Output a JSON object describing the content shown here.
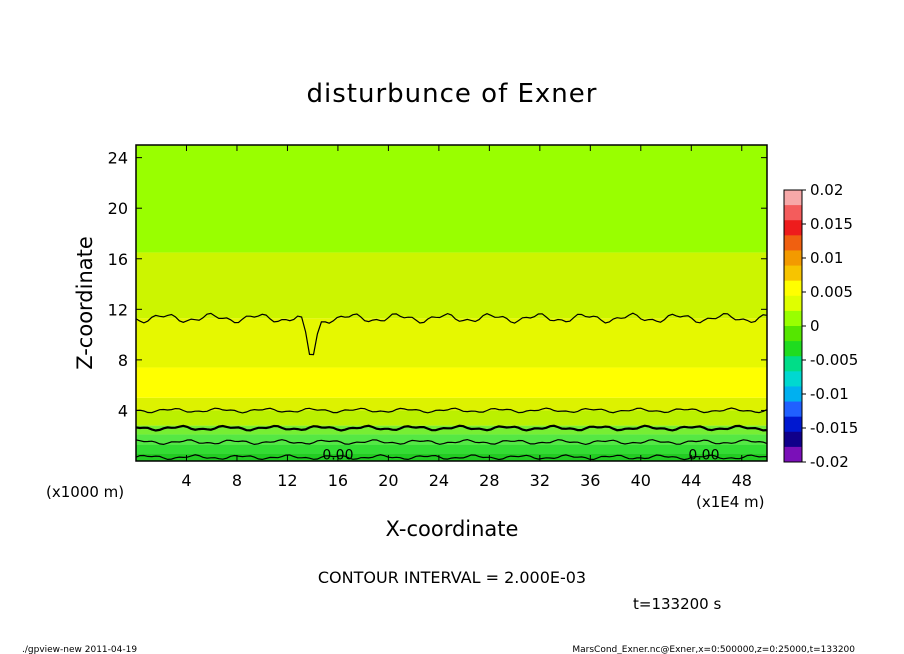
{
  "chart_data": {
    "type": "contour",
    "title": "disturbunce of Exner",
    "xlabel": "X-coordinate",
    "ylabel": "Z-coordinate",
    "x_unit_note": "(x1E4 m)",
    "y_unit_note": "(x1000 m)",
    "x_ticks": [
      "4",
      "8",
      "12",
      "16",
      "20",
      "24",
      "28",
      "32",
      "36",
      "40",
      "44",
      "48"
    ],
    "y_ticks": [
      "4",
      "8",
      "12",
      "16",
      "20",
      "24"
    ],
    "xlim": [
      0,
      50
    ],
    "ylim": [
      0,
      25
    ],
    "contour_interval_text": "CONTOUR INTERVAL = 2.000E-03",
    "time_text": "t=133200 s",
    "contour_labels": [
      "0.00",
      "0.00"
    ],
    "colorbar": {
      "labels": [
        "0.02",
        "0.015",
        "0.01",
        "0.005",
        "0",
        "-0.005",
        "-0.01",
        "-0.015",
        "-0.02"
      ],
      "colors": [
        "#f7a8a8",
        "#f45c5c",
        "#ee1c1c",
        "#f06010",
        "#f39a00",
        "#f7c400",
        "#ffff00",
        "#dfff00",
        "#99ff00",
        "#55e600",
        "#1fdc1f",
        "#00dd88",
        "#00d8d0",
        "#00b0f0",
        "#2060ff",
        "#0018d0",
        "#10008a",
        "#7a10b8"
      ]
    },
    "bands": [
      {
        "z_min": 0.0,
        "z_max": 0.6,
        "color": "#22cc22"
      },
      {
        "z_min": 0.6,
        "z_max": 1.3,
        "color": "#33dd33"
      },
      {
        "z_min": 1.3,
        "z_max": 2.1,
        "color": "#55e844"
      },
      {
        "z_min": 2.1,
        "z_max": 2.8,
        "color": "#77ee33"
      },
      {
        "z_min": 2.8,
        "z_max": 4.0,
        "color": "#bbf000"
      },
      {
        "z_min": 4.0,
        "z_max": 5.0,
        "color": "#ddf200"
      },
      {
        "z_min": 5.0,
        "z_max": 7.4,
        "color": "#ffff00"
      },
      {
        "z_min": 7.4,
        "z_max": 11.3,
        "color": "#e6f800"
      },
      {
        "z_min": 11.3,
        "z_max": 16.5,
        "color": "#ccf500"
      },
      {
        "z_min": 16.5,
        "z_max": 25.0,
        "color": "#99ff00"
      }
    ],
    "contour_levels_z": [
      0.3,
      1.5,
      2.6,
      4.0,
      11.3
    ],
    "bottom_left_text": "./gpview-new   2011-04-19",
    "bottom_right_text": "MarsCond_Exner.nc@Exner,x=0:500000,z=0:25000,t=133200"
  }
}
